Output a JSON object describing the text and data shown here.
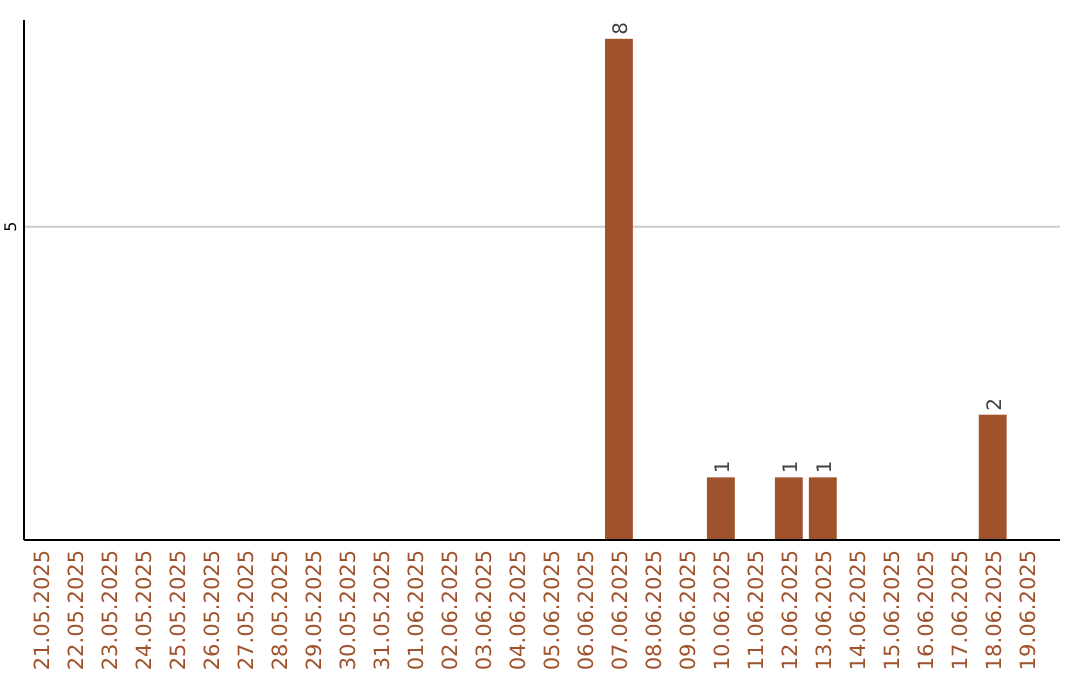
{
  "chart_data": {
    "type": "bar",
    "categories": [
      "21.05.2025",
      "22.05.2025",
      "23.05.2025",
      "24.05.2025",
      "25.05.2025",
      "26.05.2025",
      "27.05.2025",
      "28.05.2025",
      "29.05.2025",
      "30.05.2025",
      "31.05.2025",
      "01.06.2025",
      "02.06.2025",
      "03.06.2025",
      "04.06.2025",
      "05.06.2025",
      "06.06.2025",
      "07.06.2025",
      "08.06.2025",
      "09.06.2025",
      "10.06.2025",
      "11.06.2025",
      "12.06.2025",
      "13.06.2025",
      "14.06.2025",
      "15.06.2025",
      "16.06.2025",
      "17.06.2025",
      "18.06.2025",
      "19.06.2025"
    ],
    "values": [
      null,
      null,
      null,
      null,
      null,
      null,
      null,
      null,
      null,
      null,
      null,
      null,
      null,
      null,
      null,
      null,
      null,
      8,
      null,
      null,
      1,
      null,
      1,
      1,
      null,
      null,
      null,
      null,
      2,
      null
    ],
    "data_labels": true,
    "color": "#a0522d",
    "ylim": [
      0,
      8.3
    ],
    "yticks": [
      5
    ],
    "grid": "y"
  }
}
